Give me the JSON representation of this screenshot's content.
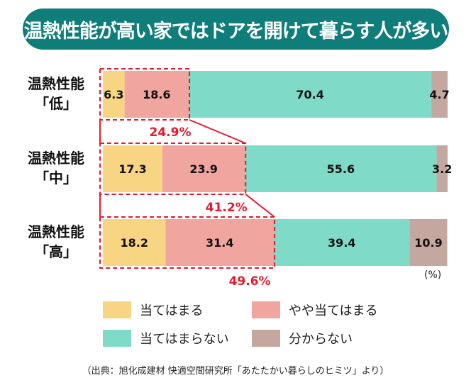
{
  "title": "温熱性能が高い家ではドアを開けて暮らす人が多い",
  "unit_label": "(%)",
  "source": "（出典：旭化成建材 快適空間研究所「あたたかい暮らしのヒミツ」より）",
  "chart_data": {
    "type": "bar",
    "orientation": "horizontal",
    "stacked": true,
    "title": "温熱性能が高い家ではドアを開けて暮らす人が多い",
    "categories": [
      {
        "line1": "温熱性能",
        "line2": "「低」"
      },
      {
        "line1": "温熱性能",
        "line2": "「中」"
      },
      {
        "line1": "温熱性能",
        "line2": "「高」"
      }
    ],
    "series": [
      {
        "name": "当てはまる",
        "color": "#f8d583",
        "values": [
          6.3,
          17.3,
          18.2
        ],
        "labels": [
          "6.3",
          "17.3",
          "18.2"
        ]
      },
      {
        "name": "やや当てはまる",
        "color": "#f0a59e",
        "values": [
          18.6,
          23.9,
          31.4
        ],
        "labels": [
          "18.6",
          "23.9",
          "31.4"
        ]
      },
      {
        "name": "当てはまらない",
        "color": "#7fdac8",
        "values": [
          70.4,
          55.6,
          39.4
        ],
        "labels": [
          "70.4",
          "55.6",
          "39.4"
        ]
      },
      {
        "name": "分からない",
        "color": "#c4a79e",
        "values": [
          4.7,
          3.2,
          10.9
        ],
        "labels": [
          "4.7",
          "3.2",
          "10.9"
        ]
      }
    ],
    "annotations": [
      {
        "text": "24.9%",
        "value": 24.9,
        "color": "#e8192c"
      },
      {
        "text": "41.2%",
        "value": 41.2,
        "color": "#e8192c"
      },
      {
        "text": "49.6%",
        "value": 49.6,
        "color": "#e8192c"
      }
    ],
    "xlim": [
      0,
      100
    ],
    "legend_position": "bottom"
  }
}
